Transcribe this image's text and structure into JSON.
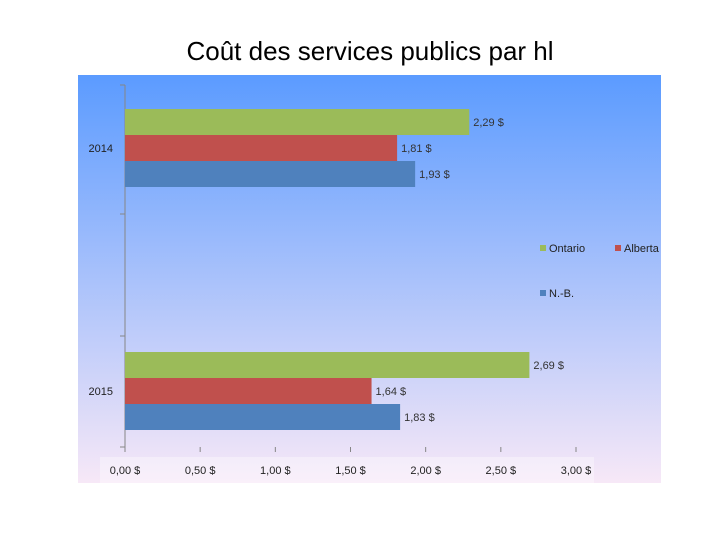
{
  "chart_data": {
    "type": "bar",
    "orientation": "horizontal",
    "title": "Coût des services publics par hl",
    "categories": [
      "2014",
      "2015"
    ],
    "series": [
      {
        "name": "Ontario",
        "color": "#9bbb59",
        "values": [
          2.29,
          2.69
        ],
        "labels": [
          "2,29 $",
          "2,69 $"
        ]
      },
      {
        "name": "Alberta",
        "color": "#c0504d",
        "values": [
          1.81,
          1.64
        ],
        "labels": [
          "1,81 $",
          "1,64 $"
        ]
      },
      {
        "name": "N.-B.",
        "color": "#4f81bd",
        "values": [
          1.93,
          1.83
        ],
        "labels": [
          "1,93 $",
          "1,83 $"
        ]
      }
    ],
    "xlim": [
      0,
      3
    ],
    "xticks": [
      0,
      0.5,
      1,
      1.5,
      2,
      2.5,
      3
    ],
    "xtick_labels": [
      "0,00 $",
      "0,50 $",
      "1,00 $",
      "1,50 $",
      "2,00 $",
      "2,50 $",
      "3,00 $"
    ],
    "legend": {
      "placement": "middle-right",
      "entries": [
        "Ontario",
        "Alberta",
        "N.-B."
      ]
    },
    "grid": false,
    "background": {
      "top": "#5b9bff",
      "bottom": "#f7e8f7"
    }
  }
}
